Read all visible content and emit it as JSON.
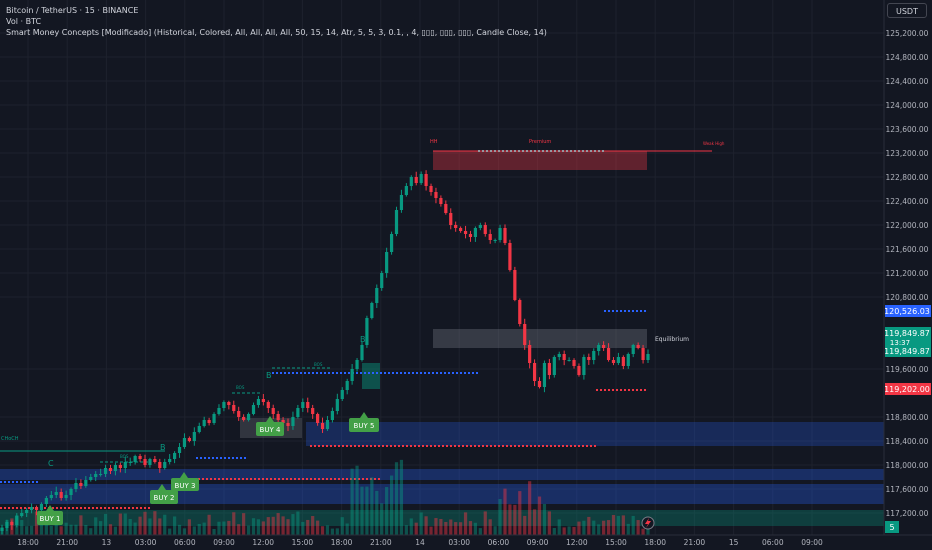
{
  "header": {
    "symbol_line": "Bitcoin / TetherUS · 15 · BINANCE",
    "volume_line": "Vol · BTC",
    "indicator_line": "Smart Money Concepts [Modificado] (Historical, Colored, All, All, All, All, 50, 15, 14, Atr, 5, 5, 3, 0.1, , 4, ▯▯▯, ▯▯▯, ▯▯▯, Candle Close, 14)",
    "currency_button": "USDT"
  },
  "price_axis": {
    "ticks": [
      "125,200.00",
      "124,800.00",
      "124,400.00",
      "124,000.00",
      "123,600.00",
      "123,200.00",
      "122,800.00",
      "122,400.00",
      "122,000.00",
      "121,600.00",
      "121,200.00",
      "120,800.00",
      "119,600.00",
      "118,800.00",
      "118,400.00",
      "118,000.00",
      "117,600.00",
      "117,200.00"
    ],
    "labels": {
      "upper": "120,526.03",
      "last_price": "119,849.87",
      "countdown": "13:37",
      "last_price_repeat": "119,849.87",
      "lower": "119,202.00",
      "volume_badge": "5"
    },
    "colors": {
      "upper": "#2962ff",
      "last": "#089981",
      "lower": "#f23645"
    }
  },
  "time_axis": {
    "ticks": [
      "18:00",
      "21:00",
      "13",
      "03:00",
      "06:00",
      "09:00",
      "12:00",
      "15:00",
      "18:00",
      "21:00",
      "14",
      "03:00",
      "06:00",
      "09:00",
      "12:00",
      "15:00",
      "18:00",
      "21:00",
      "15",
      "06:00",
      "09:00"
    ]
  },
  "annotations": {
    "hh": "HH",
    "premium": "Premium",
    "weak_high": "Weak High",
    "equilibrium": "Equilibrium",
    "choch": "CHoCH",
    "c_label": "C",
    "b_label_1": "B",
    "b_label_2": "B",
    "b_label_3": "B",
    "bos_1": "BOS",
    "bos_2": "BOS",
    "bos_3": "BOS",
    "bos_4": "BOS"
  },
  "signals": [
    {
      "label": "BUY 1"
    },
    {
      "label": "BUY 2"
    },
    {
      "label": "BUY 3"
    },
    {
      "label": "BUY 4"
    },
    {
      "label": "BUY 5"
    }
  ],
  "chart_data": {
    "type": "candlestick",
    "symbol": "BTCUSDT",
    "interval": "15",
    "ylim": [
      116800,
      125300
    ],
    "close_series": [
      116950,
      117050,
      117000,
      117150,
      117200,
      117250,
      117300,
      117250,
      117350,
      117450,
      117500,
      117550,
      117450,
      117500,
      117600,
      117700,
      117650,
      117750,
      117800,
      117850,
      117850,
      117950,
      117900,
      118000,
      117950,
      118050,
      118050,
      118150,
      118100,
      118000,
      118100,
      118050,
      117950,
      118050,
      118100,
      118200,
      118300,
      118450,
      118400,
      118550,
      118650,
      118750,
      118700,
      118850,
      118950,
      119050,
      119000,
      118900,
      118800,
      118750,
      118850,
      119000,
      119100,
      119050,
      118950,
      118850,
      118750,
      118700,
      118650,
      118800,
      118950,
      119050,
      118950,
      118850,
      118700,
      118600,
      118750,
      118900,
      119100,
      119250,
      119400,
      119600,
      119750,
      120000,
      120450,
      120700,
      120950,
      121200,
      121550,
      121850,
      122250,
      122500,
      122650,
      122800,
      122700,
      122850,
      122650,
      122550,
      122450,
      122350,
      122200,
      122000,
      121950,
      121900,
      121850,
      121800,
      121950,
      122000,
      121850,
      121750,
      121750,
      121950,
      121700,
      121250,
      120750,
      120350,
      120000,
      119700,
      119400,
      119300,
      119700,
      119500,
      119800,
      119850,
      119750,
      119750,
      119650,
      119500,
      119800,
      119750,
      119900,
      120000,
      119950,
      119750,
      119700,
      119800,
      119650,
      119850,
      120000,
      119950,
      119750,
      119850
    ]
  }
}
